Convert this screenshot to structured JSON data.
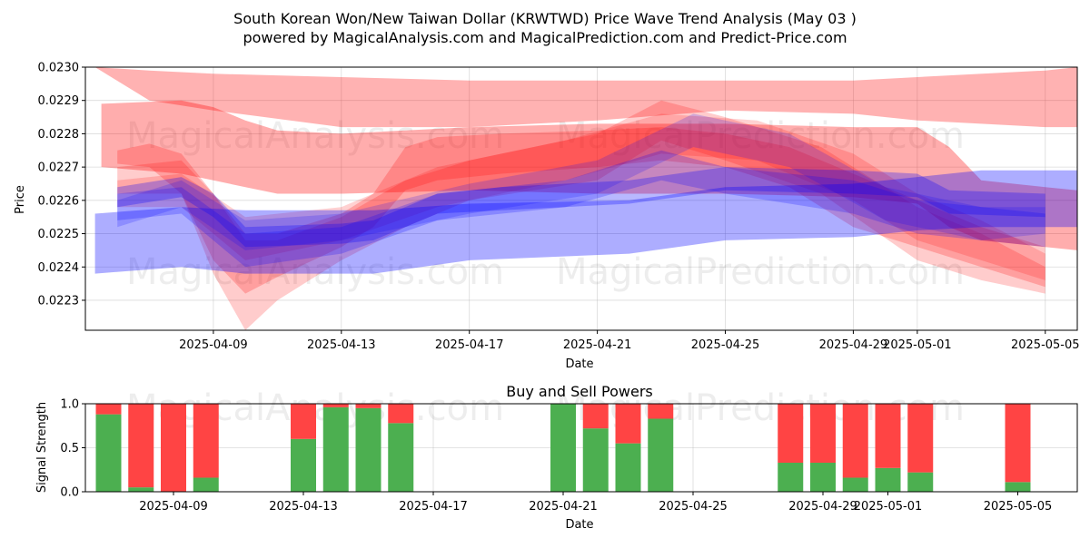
{
  "chart_data": [
    {
      "type": "area",
      "title_line1": "South Korean Won/New Taiwan Dollar (KRWTWD) Price Wave Trend Analysis (May 03 )",
      "title_line2": "powered by MagicalAnalysis.com and MagicalPrediction.com and Predict-Price.com",
      "xlabel": "Date",
      "ylabel": "Price",
      "xlim": [
        "2025-04-05",
        "2025-05-06"
      ],
      "ylim": [
        0.02221,
        0.023
      ],
      "x_ticks": [
        "2025-04-09",
        "2025-04-13",
        "2025-04-17",
        "2025-04-21",
        "2025-04-25",
        "2025-04-29",
        "2025-05-01",
        "2025-05-05"
      ],
      "y_ticks": [
        "0.0223",
        "0.0224",
        "0.0225",
        "0.0226",
        "0.0227",
        "0.0228",
        "0.0229",
        "0.0230"
      ],
      "grid": true,
      "watermarks": [
        "MagicalAnalysis.com",
        "MagicalPrediction.com"
      ],
      "colors": {
        "red": "#ff0000",
        "blue": "#0000ff"
      },
      "bands": [
        {
          "color": "red",
          "opacity": 0.32,
          "points": [
            [
              "2025-04-05.5",
              0.02289,
              0.0227
            ],
            [
              "2025-04-08",
              0.0229,
              0.02268
            ],
            [
              "2025-04-09",
              0.02288,
              0.02266
            ],
            [
              "2025-04-10",
              0.02284,
              0.02264
            ],
            [
              "2025-04-11",
              0.02281,
              0.02262
            ],
            [
              "2025-04-13",
              0.0228,
              0.02262
            ],
            [
              "2025-04-17",
              0.02282,
              0.02263
            ],
            [
              "2025-04-21",
              0.02283,
              0.02262
            ],
            [
              "2025-04-25",
              0.02283,
              0.02262
            ],
            [
              "2025-04-29",
              0.02282,
              0.02261
            ],
            [
              "2025-05-01",
              0.02282,
              0.02259
            ],
            [
              "2025-05-02",
              0.02276,
              0.02252
            ],
            [
              "2025-05-03",
              0.02266,
              0.02248
            ],
            [
              "2025-05-05",
              0.02264,
              0.02246
            ],
            [
              "2025-05-06",
              0.02263,
              0.02245
            ]
          ]
        },
        {
          "color": "red",
          "opacity": 0.3,
          "points": [
            [
              "2025-04-05.3",
              0.023,
              0.023
            ],
            [
              "2025-04-07",
              0.02299,
              0.0229
            ],
            [
              "2025-04-09",
              0.02298,
              0.02287
            ],
            [
              "2025-04-13",
              0.02297,
              0.02282
            ],
            [
              "2025-04-17",
              0.02296,
              0.02282
            ],
            [
              "2025-04-21",
              0.02296,
              0.02284
            ],
            [
              "2025-04-25",
              0.02296,
              0.02287
            ],
            [
              "2025-04-29",
              0.02296,
              0.02286
            ],
            [
              "2025-05-01",
              0.02297,
              0.02284
            ],
            [
              "2025-05-05",
              0.02299,
              0.02282
            ],
            [
              "2025-05-06",
              0.023,
              0.02282
            ]
          ]
        },
        {
          "color": "red",
          "opacity": 0.22,
          "points": [
            [
              "2025-04-06",
              0.02275,
              0.02271
            ],
            [
              "2025-04-07",
              0.02277,
              0.0227
            ],
            [
              "2025-04-08",
              0.02274,
              0.02262
            ],
            [
              "2025-04-09",
              0.02262,
              0.02242
            ],
            [
              "2025-04-10",
              0.0225,
              0.02232
            ],
            [
              "2025-04-11",
              0.0225,
              0.02237
            ],
            [
              "2025-04-13",
              0.02256,
              0.02246
            ],
            [
              "2025-04-14",
              0.02262,
              0.02252
            ],
            [
              "2025-04-15",
              0.02276,
              0.02263
            ],
            [
              "2025-04-16",
              0.02279,
              0.02266
            ],
            [
              "2025-04-18",
              0.0228,
              0.02268
            ],
            [
              "2025-04-21",
              0.02281,
              0.0227
            ],
            [
              "2025-04-23",
              0.02282,
              0.02272
            ],
            [
              "2025-04-25",
              0.0228,
              0.0227
            ],
            [
              "2025-04-27",
              0.02276,
              0.02264
            ],
            [
              "2025-04-29",
              0.02268,
              0.02252
            ],
            [
              "2025-05-01",
              0.0226,
              0.02246
            ],
            [
              "2025-05-03",
              0.02252,
              0.0224
            ],
            [
              "2025-05-05",
              0.02246,
              0.02234
            ]
          ]
        },
        {
          "color": "red",
          "opacity": 0.2,
          "points": [
            [
              "2025-04-06",
              0.0227,
              0.02262
            ],
            [
              "2025-04-08",
              0.02272,
              0.02262
            ],
            [
              "2025-04-09",
              0.02262,
              0.02238
            ],
            [
              "2025-04-10",
              0.02248,
              0.02221
            ],
            [
              "2025-04-11",
              0.02248,
              0.0223
            ],
            [
              "2025-04-13",
              0.02255,
              0.02242
            ],
            [
              "2025-04-15",
              0.02266,
              0.02252
            ],
            [
              "2025-04-17",
              0.02272,
              0.0226
            ],
            [
              "2025-04-21",
              0.0228,
              0.02266
            ],
            [
              "2025-04-23",
              0.0229,
              0.02278
            ],
            [
              "2025-04-25",
              0.02285,
              0.02272
            ],
            [
              "2025-04-28",
              0.02276,
              0.02262
            ],
            [
              "2025-05-01",
              0.02258,
              0.02242
            ],
            [
              "2025-05-03",
              0.0225,
              0.02236
            ],
            [
              "2025-05-05",
              0.0224,
              0.02232
            ]
          ]
        },
        {
          "color": "red",
          "opacity": 0.18,
          "points": [
            [
              "2025-04-06",
              0.02266,
              0.02258
            ],
            [
              "2025-04-08",
              0.02268,
              0.02258
            ],
            [
              "2025-04-10",
              0.02255,
              0.02242
            ],
            [
              "2025-04-13",
              0.02258,
              0.02248
            ],
            [
              "2025-04-16",
              0.0227,
              0.02258
            ],
            [
              "2025-04-20",
              0.02278,
              0.02266
            ],
            [
              "2025-04-23",
              0.02286,
              0.02274
            ],
            [
              "2025-04-26",
              0.02284,
              0.02272
            ],
            [
              "2025-04-29",
              0.02274,
              0.0226
            ],
            [
              "2025-05-01",
              0.02262,
              0.02248
            ],
            [
              "2025-05-03",
              0.02254,
              0.02242
            ],
            [
              "2025-05-05",
              0.02244,
              0.02236
            ]
          ]
        },
        {
          "color": "blue",
          "opacity": 0.32,
          "points": [
            [
              "2025-04-05.3",
              0.02256,
              0.02238
            ],
            [
              "2025-04-08",
              0.02258,
              0.0224
            ],
            [
              "2025-04-10",
              0.02257,
              0.02238
            ],
            [
              "2025-04-14",
              0.02257,
              0.02238
            ],
            [
              "2025-04-17",
              0.02259,
              0.02242
            ],
            [
              "2025-04-22",
              0.0226,
              0.02244
            ],
            [
              "2025-04-25",
              0.02264,
              0.02248
            ],
            [
              "2025-04-29",
              0.02265,
              0.02249
            ],
            [
              "2025-05-01",
              0.02267,
              0.02251
            ],
            [
              "2025-05-03",
              0.02269,
              0.02252
            ],
            [
              "2025-05-06",
              0.02269,
              0.02252
            ]
          ]
        },
        {
          "color": "blue",
          "opacity": 0.28,
          "points": [
            [
              "2025-04-06",
              0.02264,
              0.02258
            ],
            [
              "2025-04-08",
              0.02267,
              0.02261
            ],
            [
              "2025-04-09",
              0.02262,
              0.02255
            ],
            [
              "2025-04-10",
              0.02252,
              0.02246
            ],
            [
              "2025-04-13",
              0.02253,
              0.02247
            ],
            [
              "2025-04-14",
              0.02254,
              0.02248
            ],
            [
              "2025-04-16",
              0.02262,
              0.02256
            ],
            [
              "2025-04-18",
              0.02264,
              0.02257
            ],
            [
              "2025-04-22",
              0.02266,
              0.02259
            ],
            [
              "2025-04-25",
              0.0227,
              0.02263
            ],
            [
              "2025-04-29",
              0.02269,
              0.02262
            ],
            [
              "2025-05-01",
              0.02268,
              0.02261
            ],
            [
              "2025-05-02",
              0.02263,
              0.02256
            ],
            [
              "2025-05-05",
              0.02262,
              0.02255
            ]
          ]
        },
        {
          "color": "blue",
          "opacity": 0.22,
          "points": [
            [
              "2025-04-06",
              0.02262,
              0.02254
            ],
            [
              "2025-04-08",
              0.02264,
              0.02256
            ],
            [
              "2025-04-10",
              0.0225,
              0.0224
            ],
            [
              "2025-04-13",
              0.02252,
              0.02244
            ],
            [
              "2025-04-16",
              0.02262,
              0.02254
            ],
            [
              "2025-04-20",
              0.02266,
              0.02258
            ],
            [
              "2025-04-23",
              0.02275,
              0.02266
            ],
            [
              "2025-04-25",
              0.0227,
              0.02262
            ],
            [
              "2025-04-29",
              0.02266,
              0.02256
            ],
            [
              "2025-05-01",
              0.0226,
              0.0225
            ],
            [
              "2025-05-05",
              0.02256,
              0.02246
            ]
          ]
        },
        {
          "color": "blue",
          "opacity": 0.18,
          "points": [
            [
              "2025-04-06",
              0.0226,
              0.02252
            ],
            [
              "2025-04-08",
              0.02266,
              0.02258
            ],
            [
              "2025-04-10",
              0.02254,
              0.02245
            ],
            [
              "2025-04-13",
              0.02256,
              0.02248
            ],
            [
              "2025-04-17",
              0.02265,
              0.02256
            ],
            [
              "2025-04-21",
              0.02272,
              0.02262
            ],
            [
              "2025-04-24",
              0.02286,
              0.02276
            ],
            [
              "2025-04-27",
              0.0228,
              0.0227
            ],
            [
              "2025-04-30",
              0.02264,
              0.02254
            ],
            [
              "2025-05-03",
              0.02258,
              0.02248
            ],
            [
              "2025-05-05",
              0.02258,
              0.0225
            ]
          ]
        }
      ]
    },
    {
      "type": "bar",
      "title": "Buy and Sell Powers",
      "xlabel": "Date",
      "ylabel": "Signal Strength",
      "xlim": [
        "2025-04-05",
        "2025-05-06"
      ],
      "ylim": [
        0,
        1.0
      ],
      "x_ticks": [
        "2025-04-09",
        "2025-04-13",
        "2025-04-17",
        "2025-04-21",
        "2025-04-25",
        "2025-04-29",
        "2025-05-01",
        "2025-05-05"
      ],
      "y_ticks": [
        "0.0",
        "0.5",
        "1.0"
      ],
      "grid": true,
      "colors": {
        "buy": "#4caf50",
        "sell": "#ff4444"
      },
      "categories": [
        "2025-04-07",
        "2025-04-08",
        "2025-04-09",
        "2025-04-10",
        "2025-04-13",
        "2025-04-14",
        "2025-04-15",
        "2025-04-16",
        "2025-04-21",
        "2025-04-22",
        "2025-04-23",
        "2025-04-24",
        "2025-04-28",
        "2025-04-29",
        "2025-04-30",
        "2025-05-01",
        "2025-05-02",
        "2025-05-05"
      ],
      "series": [
        {
          "name": "Buy",
          "values": [
            0.88,
            0.05,
            0.0,
            0.16,
            0.6,
            0.96,
            0.95,
            0.78,
            1.0,
            0.72,
            0.55,
            0.83,
            0.33,
            0.33,
            0.16,
            0.27,
            0.22,
            0.11
          ]
        },
        {
          "name": "Sell",
          "values": [
            0.12,
            0.95,
            1.0,
            0.84,
            0.4,
            0.04,
            0.05,
            0.22,
            0.0,
            0.28,
            0.45,
            0.17,
            0.67,
            0.67,
            0.84,
            0.73,
            0.78,
            0.89
          ]
        }
      ]
    }
  ]
}
